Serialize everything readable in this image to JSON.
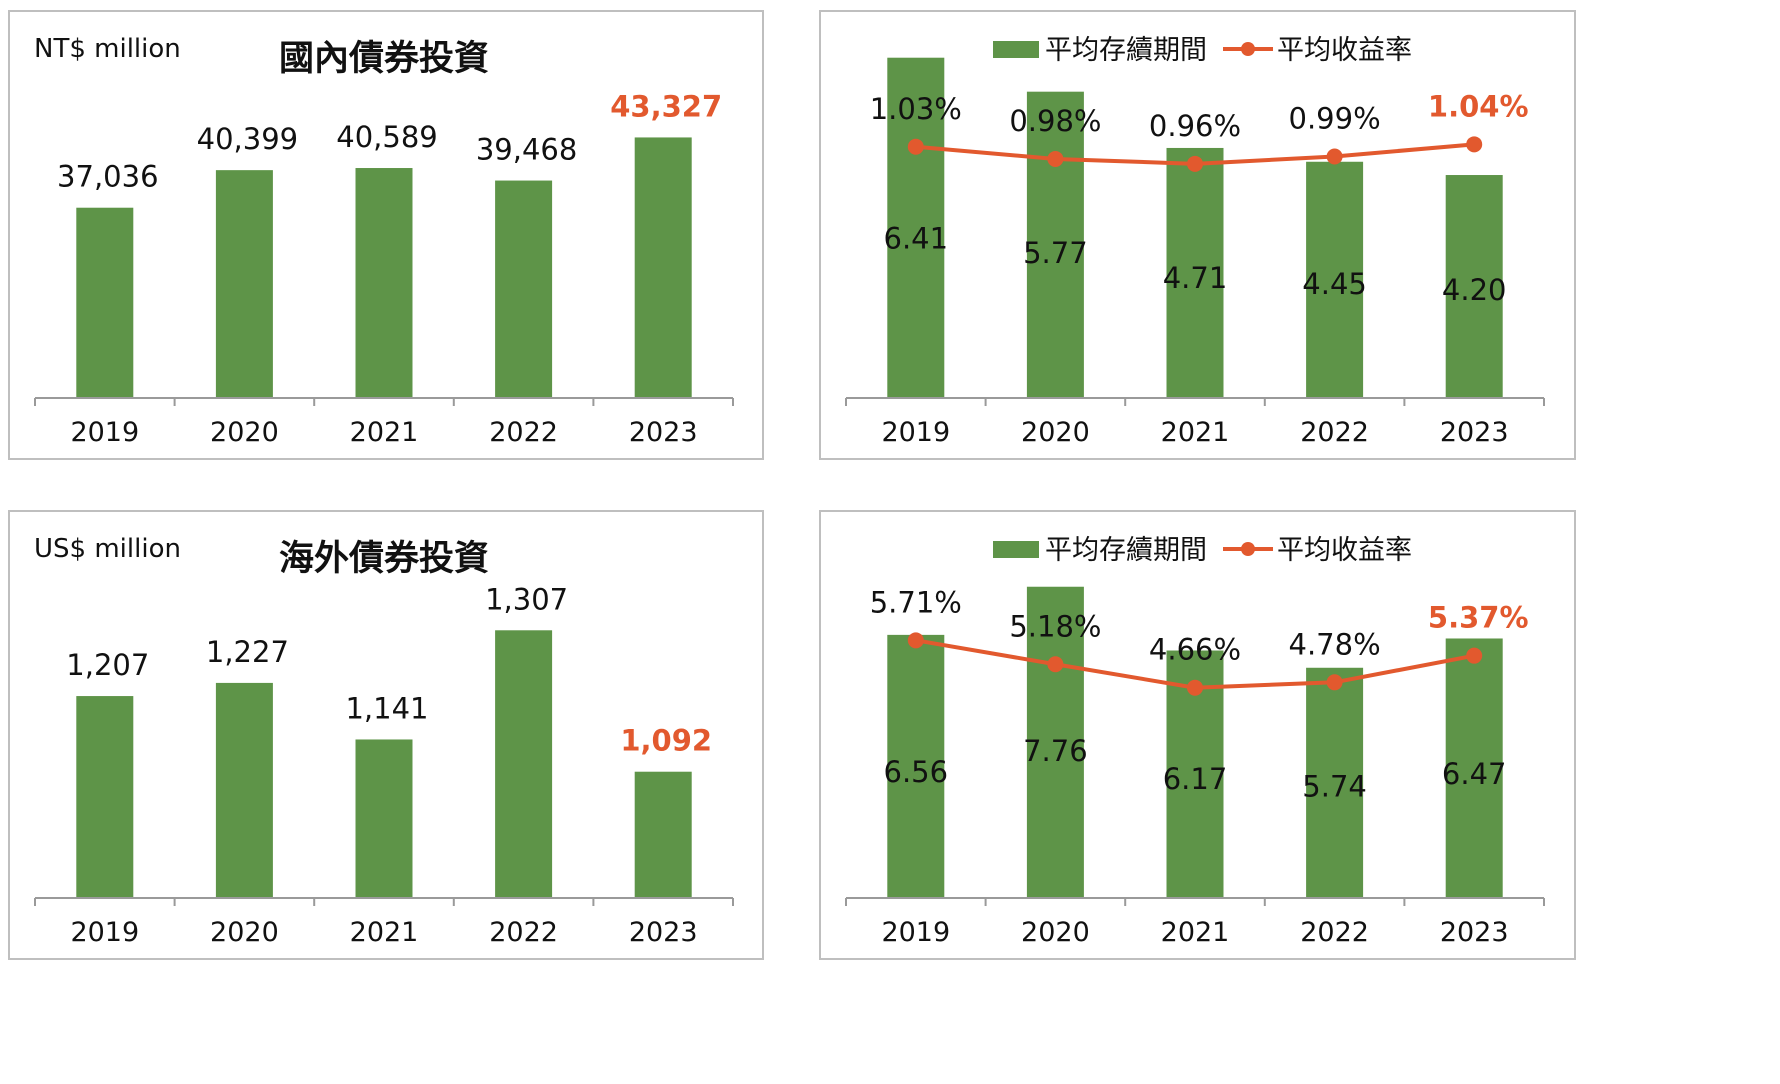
{
  "chart_data": [
    {
      "id": "domestic-amount",
      "type": "bar",
      "title": "國內債券投資",
      "unit_label": "NT$ million",
      "categories": [
        "2019",
        "2020",
        "2021",
        "2022",
        "2023"
      ],
      "values": [
        37036,
        40399,
        40589,
        39468,
        43327
      ],
      "value_labels": [
        "37,036",
        "40,399",
        "40,589",
        "39,468",
        "43,327"
      ],
      "ylim": [
        20000,
        46500
      ],
      "highlight_index": 4
    },
    {
      "id": "domestic-duration-yield",
      "type": "bar+line",
      "categories": [
        "2019",
        "2020",
        "2021",
        "2022",
        "2023"
      ],
      "legend": [
        "平均存續期間",
        "平均收益率"
      ],
      "series": [
        {
          "name": "平均存續期間",
          "type": "bar",
          "values": [
            6.41,
            5.77,
            4.71,
            4.45,
            4.2
          ],
          "value_labels": [
            "6.41",
            "5.77",
            "4.71",
            "4.45",
            "4.20"
          ]
        },
        {
          "name": "平均收益率",
          "type": "line",
          "values": [
            1.03,
            0.98,
            0.96,
            0.99,
            1.04
          ],
          "value_labels": [
            "1.03%",
            "0.98%",
            "0.96%",
            "0.99%",
            "1.04%"
          ]
        }
      ],
      "bar_ylim": [
        0,
        6.8
      ],
      "line_ylim": [
        0,
        1.48
      ],
      "highlight_index": 4
    },
    {
      "id": "overseas-amount",
      "type": "bar",
      "title": "海外債券投資",
      "unit_label": "US$ million",
      "categories": [
        "2019",
        "2020",
        "2021",
        "2022",
        "2023"
      ],
      "values": [
        1207,
        1227,
        1141,
        1307,
        1092
      ],
      "value_labels": [
        "1,207",
        "1,227",
        "1,141",
        "1,307",
        "1,092"
      ],
      "ylim": [
        900,
        1350
      ],
      "highlight_index": 4
    },
    {
      "id": "overseas-duration-yield",
      "type": "bar+line",
      "categories": [
        "2019",
        "2020",
        "2021",
        "2022",
        "2023"
      ],
      "legend": [
        "平均存續期間",
        "平均收益率"
      ],
      "series": [
        {
          "name": "平均存續期間",
          "type": "bar",
          "values": [
            6.56,
            7.76,
            6.17,
            5.74,
            6.47
          ],
          "value_labels": [
            "6.56",
            "7.76",
            "6.17",
            "5.74",
            "6.47"
          ]
        },
        {
          "name": "平均收益率",
          "type": "line",
          "values": [
            5.71,
            5.18,
            4.66,
            4.78,
            5.37
          ],
          "value_labels": [
            "5.71%",
            "5.18%",
            "4.66%",
            "4.78%",
            "5.37%"
          ]
        }
      ],
      "bar_ylim": [
        0,
        9.0
      ],
      "line_ylim": [
        0,
        8.0
      ],
      "highlight_index": 4
    }
  ],
  "colors": {
    "bar": "#5e9448",
    "line": "#e2592e",
    "highlight_text": "#e2592e",
    "axis": "#9a9a9a",
    "border": "#bfbfbf"
  }
}
